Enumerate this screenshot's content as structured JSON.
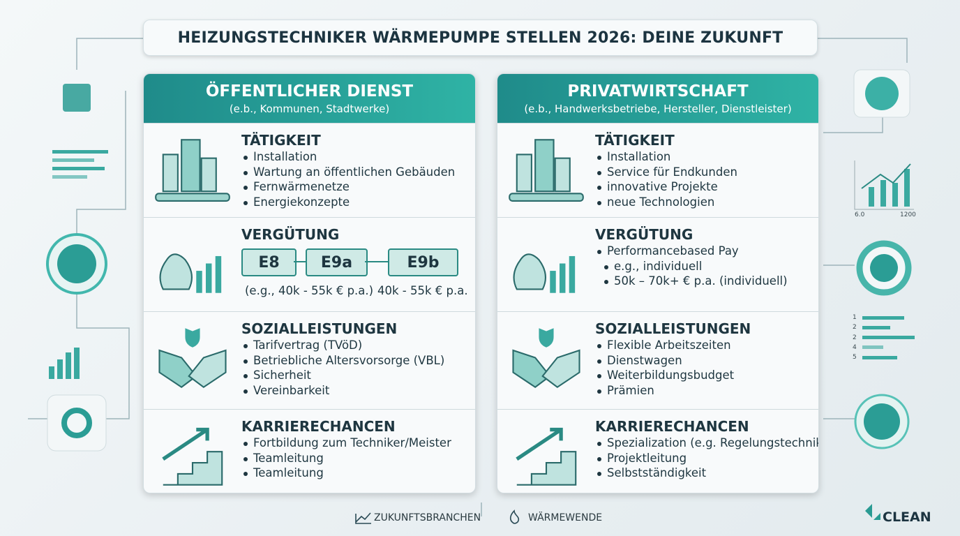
{
  "title": "HEIZUNGSTECHNIKER WÄRMEPUMPE STELLEN 2026: DEINE ZUKUNFT",
  "columns": [
    {
      "title": "ÖFFENTLICHER DIENST",
      "subtitle": "(e.b., Kommunen, Stadtwerke)",
      "sections": [
        {
          "heading": "TÄTIGKEIT",
          "items": [
            "Installation",
            "Wartung an öffentlichen Gebäuden",
            "Fernwärmenetze",
            "Energiekonzepte"
          ]
        },
        {
          "heading": "VERGÜTUNG",
          "grades": [
            "E8",
            "E9a",
            "E9b"
          ],
          "notes": [
            "(e.g., 40k - 55k € p.a.)",
            "40k - 55k € p.a."
          ]
        },
        {
          "heading": "SOZIALLEISTUNGEN",
          "items": [
            "Tarifvertrag (TVöD)",
            "Betriebliche Altersvorsorge (VBL)",
            "Sicherheit",
            "Vereinbarkeit"
          ]
        },
        {
          "heading": "KARRIERECHANCEN",
          "items": [
            "Fortbildung zum Techniker/Meister",
            "Teamleitung",
            "Teamleitung"
          ]
        }
      ]
    },
    {
      "title": "PRIVATWIRTSCHAFT",
      "subtitle": "(e.b., Handwerksbetriebe, Hersteller, Dienstleister)",
      "sections": [
        {
          "heading": "TÄTIGKEIT",
          "items": [
            "Installation",
            "Service für Endkunden",
            "innovative Projekte",
            "neue Technologien"
          ]
        },
        {
          "heading": "VERGÜTUNG",
          "items": [
            "Performancebased Pay",
            "e.g., individuell",
            "50k – 70k+ € p.a. (individuell)"
          ]
        },
        {
          "heading": "SOZIALLEISTUNGEN",
          "items": [
            "Flexible Arbeitszeiten",
            "Dienstwagen",
            "Weiterbildungsbudget",
            "Prämien"
          ]
        },
        {
          "heading": "KARRIERECHANCEN",
          "items": [
            "Spezialization (e.g. Regelungstechnik)",
            "Projektleitung",
            "Selbstständigkeit"
          ]
        }
      ]
    }
  ],
  "side": {
    "chart_labels": [
      "6.0",
      "1200"
    ],
    "list_numbers": [
      "1",
      "2",
      "2",
      "4",
      "5"
    ]
  },
  "footer": {
    "tags": [
      "ZUKUNFTSBRANCHEN",
      "WÄRMEWENDE"
    ],
    "brand": "CLEAN"
  }
}
